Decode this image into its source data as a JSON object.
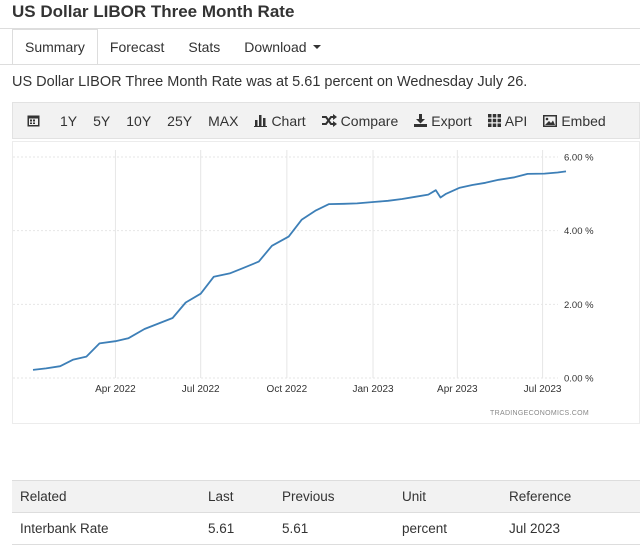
{
  "page": {
    "title": "US Dollar LIBOR Three Month Rate",
    "summary": "US Dollar LIBOR Three Month Rate was at 5.61 percent on Wednesday July 26."
  },
  "tabs": [
    {
      "label": "Summary",
      "active": true
    },
    {
      "label": "Forecast",
      "active": false
    },
    {
      "label": "Stats",
      "active": false
    },
    {
      "label": "Download",
      "active": false
    }
  ],
  "toolbar": {
    "calendar_icon": "calendar-icon",
    "ranges": [
      "1Y",
      "5Y",
      "10Y",
      "25Y",
      "MAX"
    ],
    "chart_label": "Chart",
    "compare_label": "Compare",
    "export_label": "Export",
    "api_label": "API",
    "embed_label": "Embed"
  },
  "chart_data": {
    "type": "line",
    "watermark": "TRADINGECONOMICS.COM",
    "x_ticks": [
      "Apr 2022",
      "Jul 2022",
      "Oct 2022",
      "Jan 2023",
      "Apr 2023",
      "Jul 2023"
    ],
    "y_ticks": [
      "6.00 %",
      "4.00 %",
      "2.00 %",
      "0.00 %"
    ],
    "ylim": [
      0,
      6
    ],
    "grid": true,
    "line_color": "#3d7fb7",
    "x": [
      "2022-01-03",
      "2022-01-17",
      "2022-02-01",
      "2022-02-15",
      "2022-03-01",
      "2022-03-15",
      "2022-04-01",
      "2022-04-15",
      "2022-05-02",
      "2022-05-16",
      "2022-06-01",
      "2022-06-15",
      "2022-07-01",
      "2022-07-15",
      "2022-08-01",
      "2022-08-15",
      "2022-09-01",
      "2022-09-15",
      "2022-10-03",
      "2022-10-17",
      "2022-11-01",
      "2022-11-15",
      "2022-12-01",
      "2022-12-15",
      "2023-01-03",
      "2023-01-17",
      "2023-02-01",
      "2023-02-15",
      "2023-03-01",
      "2023-03-09",
      "2023-03-14",
      "2023-03-20",
      "2023-04-03",
      "2023-04-17",
      "2023-05-01",
      "2023-05-15",
      "2023-06-01",
      "2023-06-15",
      "2023-07-03",
      "2023-07-17",
      "2023-07-26"
    ],
    "values": [
      0.22,
      0.26,
      0.32,
      0.5,
      0.58,
      0.94,
      1.0,
      1.08,
      1.33,
      1.47,
      1.63,
      2.05,
      2.29,
      2.75,
      2.84,
      2.98,
      3.16,
      3.59,
      3.84,
      4.3,
      4.55,
      4.72,
      4.73,
      4.74,
      4.78,
      4.81,
      4.86,
      4.92,
      4.98,
      5.1,
      4.9,
      5.0,
      5.16,
      5.24,
      5.3,
      5.38,
      5.45,
      5.54,
      5.55,
      5.58,
      5.61
    ]
  },
  "table": {
    "headers": [
      "Related",
      "Last",
      "Previous",
      "Unit",
      "Reference"
    ],
    "rows": [
      [
        "Interbank Rate",
        "5.61",
        "5.61",
        "percent",
        "Jul 2023"
      ]
    ]
  }
}
